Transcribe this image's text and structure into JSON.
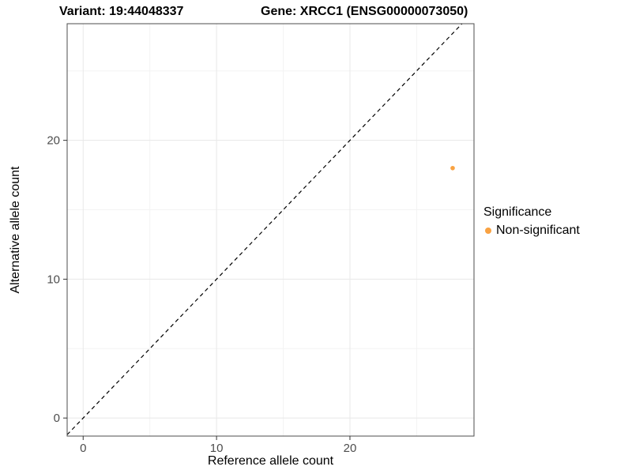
{
  "chart_data": {
    "type": "scatter",
    "title_left": "Variant: 19:44048337",
    "title_right": "Gene: XRCC1 (ENSG00000073050)",
    "xlabel": "Reference allele count",
    "ylabel": "Alternative allele count",
    "xlim": [
      -1.2,
      29.3
    ],
    "ylim": [
      -1.3,
      28.4
    ],
    "xticks": [
      0,
      10,
      20
    ],
    "yticks": [
      0,
      10,
      20
    ],
    "xminor": [
      5,
      15,
      25
    ],
    "yminor": [
      5,
      15,
      25
    ],
    "grid": true,
    "identity_line": {
      "style": "dashed",
      "slope": 1,
      "intercept": 0,
      "color": "#000000"
    },
    "series": [
      {
        "name": "Non-significant",
        "color": "#F9A242",
        "points": [
          {
            "x": 27.7,
            "y": 18
          }
        ]
      }
    ],
    "legend": {
      "position": "right",
      "title": "Significance",
      "entries": [
        {
          "label": "Non-significant",
          "color": "#F9A242"
        }
      ]
    },
    "colors": {
      "grid_major": "#E8E8E8",
      "grid_minor": "#F3F3F3",
      "panel_border": "#4D4D4D",
      "tick": "#333333",
      "tick_label": "#4D4D4D"
    }
  }
}
